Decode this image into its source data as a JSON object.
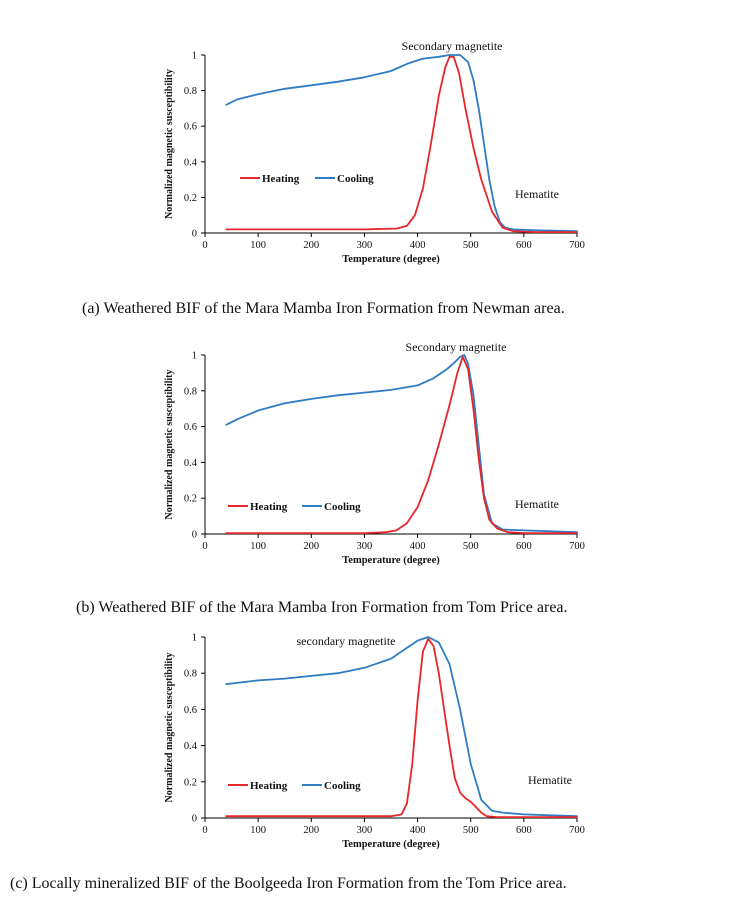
{
  "chart_data": [
    {
      "type": "line",
      "panel": "a",
      "caption": "(a) Weathered BIF of the Mara Mamba Iron Formation from Newman area.",
      "xlabel": "Temperature (degree)",
      "ylabel": "Normalized magnetic susceptibility",
      "xlim": [
        0,
        700
      ],
      "ylim": [
        0,
        1
      ],
      "xticks": [
        "0",
        "100",
        "200",
        "300",
        "400",
        "500",
        "600",
        "700"
      ],
      "yticks": [
        "0",
        "0.2",
        "0.4",
        "0.6",
        "0.8",
        "1"
      ],
      "annotations": [
        "Secondary  magnetite",
        "Hematite"
      ],
      "series": [
        {
          "name": "Heating",
          "color": "#e8262a",
          "x": [
            40,
            100,
            200,
            300,
            360,
            380,
            395,
            410,
            425,
            440,
            452,
            460,
            468,
            478,
            490,
            505,
            520,
            540,
            560,
            580,
            620,
            700
          ],
          "y": [
            0.02,
            0.02,
            0.02,
            0.02,
            0.025,
            0.04,
            0.1,
            0.25,
            0.5,
            0.77,
            0.93,
            0.99,
            0.99,
            0.9,
            0.7,
            0.48,
            0.3,
            0.12,
            0.03,
            0.01,
            0.005,
            0.005
          ]
        },
        {
          "name": "Cooling",
          "color": "#2e7cc4",
          "x": [
            40,
            60,
            100,
            150,
            200,
            250,
            300,
            350,
            380,
            410,
            440,
            460,
            480,
            495,
            505,
            515,
            525,
            535,
            545,
            555,
            565,
            580,
            620,
            700
          ],
          "y": [
            0.72,
            0.75,
            0.78,
            0.81,
            0.83,
            0.85,
            0.875,
            0.91,
            0.95,
            0.98,
            0.99,
            1.0,
            1.0,
            0.96,
            0.86,
            0.7,
            0.5,
            0.3,
            0.15,
            0.06,
            0.03,
            0.02,
            0.015,
            0.01
          ]
        }
      ]
    },
    {
      "type": "line",
      "panel": "b",
      "caption": "(b) Weathered BIF of the Mara Mamba Iron Formation from Tom Price area.",
      "xlabel": "Temperature (degree)",
      "ylabel": "Normalized magnetic susceptibility",
      "xlim": [
        0,
        700
      ],
      "ylim": [
        0,
        1
      ],
      "xticks": [
        "0",
        "100",
        "200",
        "300",
        "400",
        "500",
        "600",
        "700"
      ],
      "yticks": [
        "0",
        "0.2",
        "0.4",
        "0.6",
        "0.8",
        "1"
      ],
      "annotations": [
        "Secondary  magnetite",
        "Hematite"
      ],
      "series": [
        {
          "name": "Heating",
          "color": "#e8262a",
          "x": [
            40,
            100,
            200,
            300,
            340,
            360,
            380,
            400,
            420,
            440,
            460,
            475,
            485,
            495,
            505,
            515,
            525,
            535,
            550,
            570,
            600,
            700
          ],
          "y": [
            0.005,
            0.005,
            0.005,
            0.005,
            0.01,
            0.02,
            0.06,
            0.15,
            0.3,
            0.5,
            0.72,
            0.9,
            0.99,
            0.92,
            0.7,
            0.42,
            0.2,
            0.08,
            0.03,
            0.01,
            0.005,
            0.005
          ]
        },
        {
          "name": "Cooling",
          "color": "#2e7cc4",
          "x": [
            40,
            60,
            100,
            150,
            200,
            250,
            300,
            350,
            400,
            430,
            455,
            470,
            480,
            488,
            495,
            505,
            515,
            525,
            540,
            560,
            600,
            700
          ],
          "y": [
            0.61,
            0.64,
            0.69,
            0.73,
            0.755,
            0.775,
            0.79,
            0.805,
            0.83,
            0.87,
            0.92,
            0.96,
            0.99,
            1.0,
            0.95,
            0.78,
            0.5,
            0.22,
            0.06,
            0.025,
            0.02,
            0.01
          ]
        }
      ]
    },
    {
      "type": "line",
      "panel": "c",
      "caption": "(c) Locally mineralized BIF of the Boolgeeda Iron Formation from the Tom Price area.",
      "xlabel": "Temperature (degree)",
      "ylabel": "Normalized magnetic susceptibility",
      "xlim": [
        0,
        700
      ],
      "ylim": [
        0,
        1
      ],
      "xticks": [
        "0",
        "100",
        "200",
        "300",
        "400",
        "500",
        "600",
        "700"
      ],
      "yticks": [
        "0",
        "0.2",
        "0.4",
        "0.6",
        "0.8",
        "1"
      ],
      "annotations": [
        "secondary  magnetite",
        "Hematite"
      ],
      "series": [
        {
          "name": "Heating",
          "color": "#e8262a",
          "x": [
            40,
            100,
            200,
            300,
            350,
            370,
            380,
            390,
            400,
            410,
            420,
            430,
            440,
            450,
            460,
            470,
            480,
            490,
            500,
            510,
            520,
            530,
            550,
            600,
            700
          ],
          "y": [
            0.01,
            0.01,
            0.01,
            0.01,
            0.01,
            0.02,
            0.08,
            0.3,
            0.65,
            0.92,
            0.99,
            0.95,
            0.8,
            0.6,
            0.4,
            0.22,
            0.14,
            0.11,
            0.09,
            0.06,
            0.03,
            0.01,
            0.005,
            0.005,
            0.005
          ]
        },
        {
          "name": "Cooling",
          "color": "#2e7cc4",
          "x": [
            40,
            100,
            150,
            200,
            250,
            300,
            350,
            380,
            400,
            420,
            440,
            460,
            480,
            500,
            520,
            540,
            560,
            600,
            650,
            700
          ],
          "y": [
            0.74,
            0.76,
            0.77,
            0.785,
            0.8,
            0.83,
            0.88,
            0.94,
            0.98,
            1.0,
            0.97,
            0.85,
            0.6,
            0.3,
            0.1,
            0.04,
            0.03,
            0.02,
            0.015,
            0.01
          ]
        }
      ]
    }
  ]
}
